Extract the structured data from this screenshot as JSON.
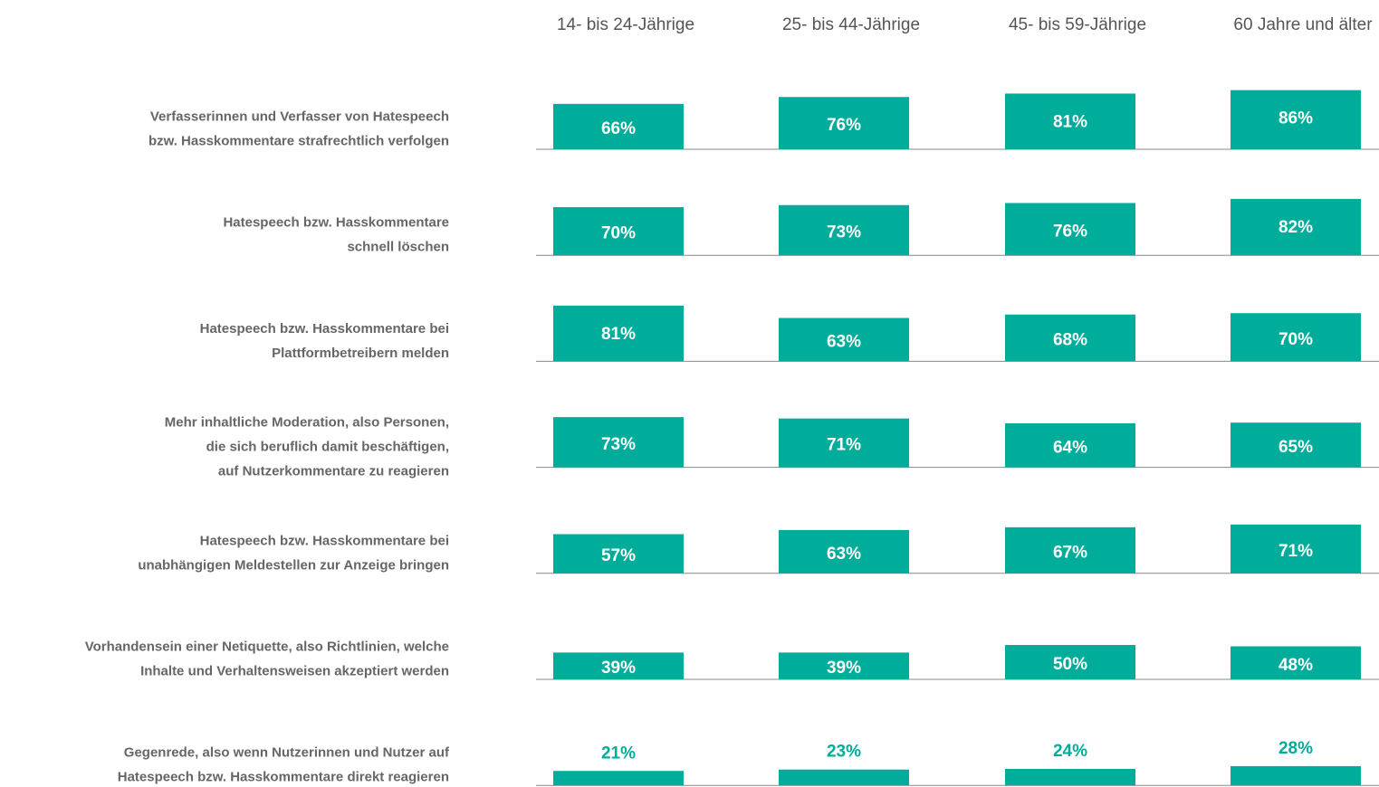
{
  "chart_data": {
    "type": "bar",
    "color": "#00ad9a",
    "ylim": [
      0,
      100
    ],
    "categories": [
      "14- bis 24-Jährige",
      "25- bis 44-Jährige",
      "45- bis 59-Jährige",
      "60 Jahre und älter"
    ],
    "series": [
      {
        "name": [
          "Verfasserinnen und Verfasser von Hatespeech",
          "bzw. Hasskommentare strafrechtlich verfolgen"
        ],
        "values": [
          66,
          76,
          81,
          86
        ],
        "value_labels": [
          "66%",
          "76%",
          "81%",
          "86%"
        ]
      },
      {
        "name": [
          "Hatespeech bzw. Hasskommentare",
          "schnell löschen"
        ],
        "values": [
          70,
          73,
          76,
          82
        ],
        "value_labels": [
          "70%",
          "73%",
          "76%",
          "82%"
        ]
      },
      {
        "name": [
          "Hatespeech bzw. Hasskommentare bei",
          "Plattformbetreibern melden"
        ],
        "values": [
          81,
          63,
          68,
          70
        ],
        "value_labels": [
          "81%",
          "63%",
          "68%",
          "70%"
        ]
      },
      {
        "name": [
          "Mehr inhaltliche Moderation, also Personen,",
          "die sich beruflich damit beschäftigen,",
          "auf Nutzerkommentare zu reagieren"
        ],
        "values": [
          73,
          71,
          64,
          65
        ],
        "value_labels": [
          "73%",
          "71%",
          "64%",
          "65%"
        ]
      },
      {
        "name": [
          "Hatespeech bzw. Hasskommentare bei",
          "unabhängigen Meldestellen zur Anzeige bringen"
        ],
        "values": [
          57,
          63,
          67,
          71
        ],
        "value_labels": [
          "57%",
          "63%",
          "67%",
          "71%"
        ]
      },
      {
        "name": [
          "Vorhandensein einer Netiquette, also Richtlinien, welche",
          "Inhalte und Verhaltensweisen akzeptiert werden"
        ],
        "values": [
          39,
          39,
          50,
          48
        ],
        "value_labels": [
          "39%",
          "39%",
          "50%",
          "48%"
        ]
      },
      {
        "name": [
          "Gegenrede, also wenn Nutzerinnen und Nutzer auf",
          "Hatespeech bzw. Hasskommentare direkt reagieren"
        ],
        "values": [
          21,
          23,
          24,
          28
        ],
        "value_labels": [
          "21%",
          "23%",
          "24%",
          "28%"
        ]
      }
    ]
  }
}
